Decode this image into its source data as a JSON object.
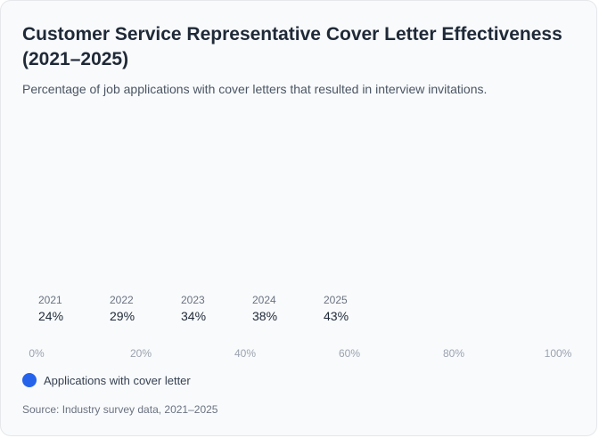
{
  "header": {
    "title": "Customer Service Representative Cover Letter Effectiveness (2021–2025)",
    "subtitle": "Percentage of job applications with cover letters that resulted in interview invitations."
  },
  "chart_data": {
    "type": "bar",
    "title": "Customer Service Representative Cover Letter Effectiveness (2021–2025)",
    "subtitle": "Percentage of job applications with cover letters that resulted in interview invitations.",
    "categories": [
      "2021",
      "2022",
      "2023",
      "2024",
      "2025"
    ],
    "values": [
      24,
      29,
      34,
      38,
      43
    ],
    "value_labels": [
      "24%",
      "29%",
      "34%",
      "38%",
      "43%"
    ],
    "x_ticks": [
      "0%",
      "20%",
      "40%",
      "60%",
      "80%",
      "100%"
    ],
    "xlim": [
      0,
      100
    ],
    "series": [
      {
        "name": "Applications with cover letter",
        "values": [
          24,
          29,
          34,
          38,
          43
        ],
        "color": "#2563eb"
      }
    ],
    "grid": false,
    "legend_position": "bottom-left"
  },
  "legend": {
    "label": "Applications with cover letter",
    "color": "#2563eb"
  },
  "footer": {
    "source": "Source: Industry survey data, 2021–2025"
  },
  "colors": {
    "accent": "#2563eb",
    "category_text": "#6b7280",
    "value_text": "#1f2937",
    "tick_text": "#9ca3af"
  }
}
